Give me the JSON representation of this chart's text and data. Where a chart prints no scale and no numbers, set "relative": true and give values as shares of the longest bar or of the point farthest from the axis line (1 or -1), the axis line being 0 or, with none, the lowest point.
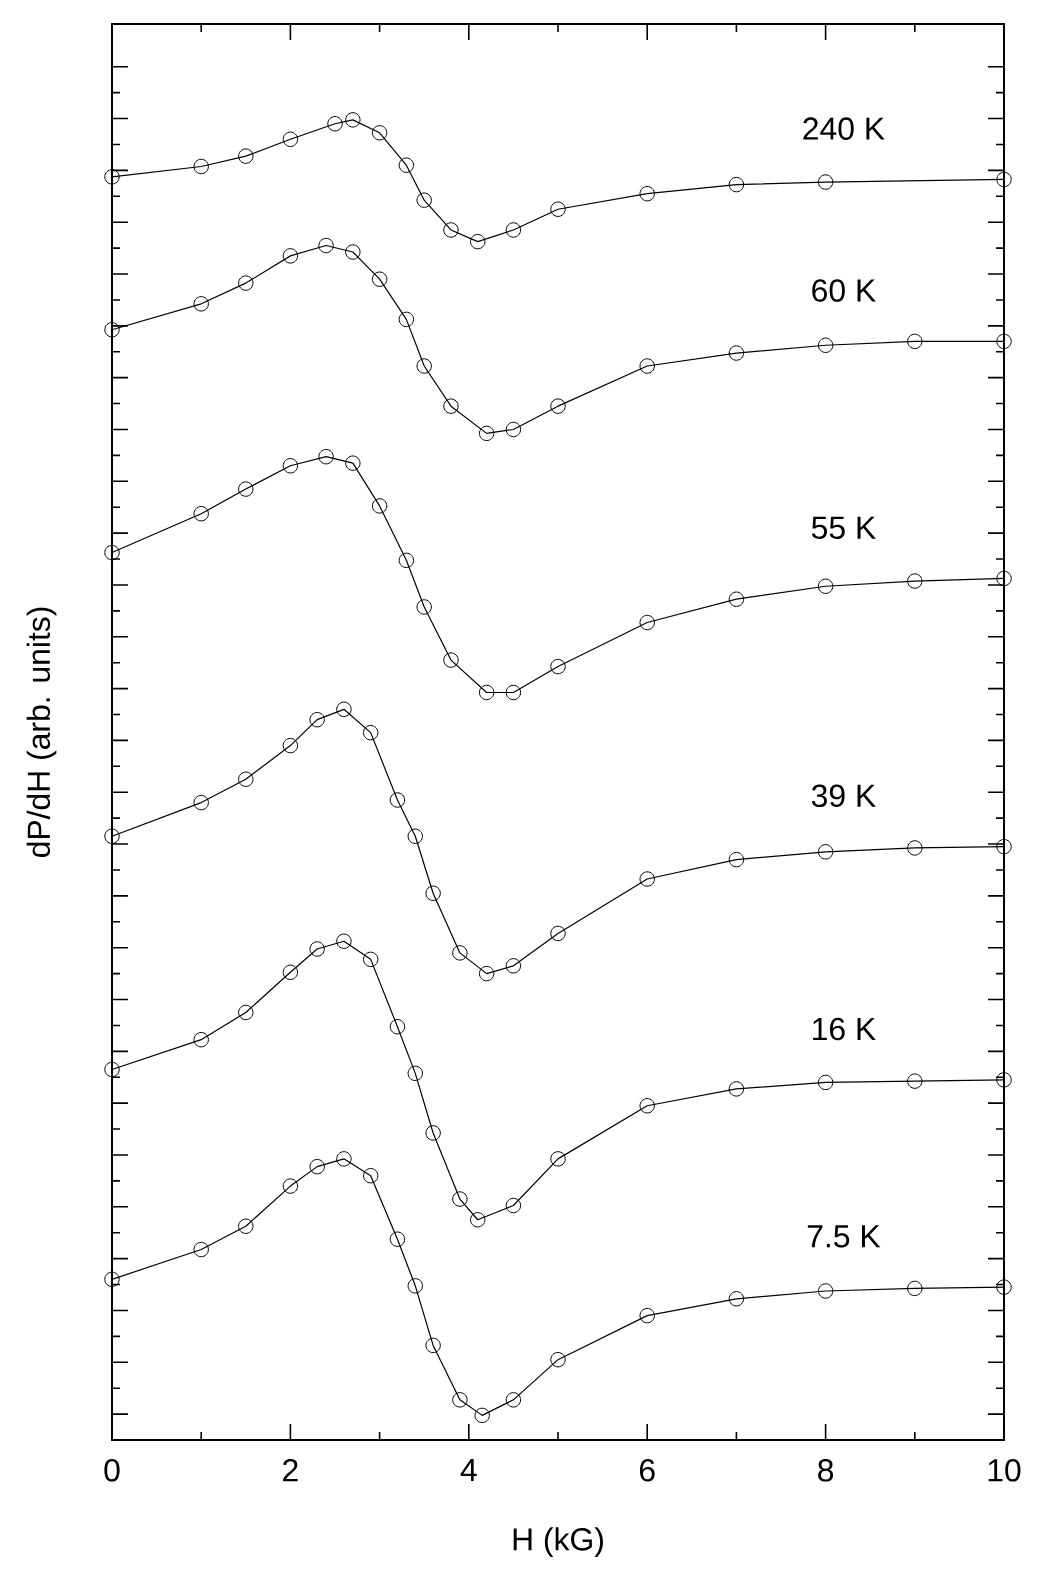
{
  "chart_data": {
    "type": "line",
    "relative": true,
    "xlabel": "H (kG)",
    "ylabel": "dP/dH (arb. units)",
    "xlim": [
      0,
      10
    ],
    "xticks": [
      0,
      2,
      4,
      6,
      8,
      10
    ],
    "tick_labels": "x",
    "legend": false,
    "marker": "circle",
    "line_style": "solid",
    "series": [
      {
        "name": "240 K",
        "color": "#000000",
        "x": [
          0,
          1,
          1.5,
          2,
          2.5,
          2.7,
          3.0,
          3.3,
          3.5,
          3.8,
          4.1,
          4.5,
          5,
          6,
          7,
          8,
          10
        ],
        "values": [
          0.956,
          0.964,
          0.972,
          0.985,
          0.997,
          1.0,
          0.99,
          0.965,
          0.938,
          0.915,
          0.906,
          0.915,
          0.931,
          0.943,
          0.95,
          0.952,
          0.954
        ]
      },
      {
        "name": "60 K",
        "color": "#000000",
        "x": [
          0,
          1,
          1.5,
          2,
          2.4,
          2.7,
          3.0,
          3.3,
          3.5,
          3.8,
          4.2,
          4.5,
          5,
          6,
          7,
          8,
          9,
          10
        ],
        "values": [
          0.838,
          0.858,
          0.874,
          0.895,
          0.903,
          0.898,
          0.877,
          0.846,
          0.81,
          0.779,
          0.758,
          0.761,
          0.779,
          0.81,
          0.82,
          0.826,
          0.829,
          0.829
        ]
      },
      {
        "name": "55 K",
        "color": "#000000",
        "x": [
          0,
          1,
          1.5,
          2,
          2.4,
          2.7,
          3.0,
          3.3,
          3.5,
          3.8,
          4.2,
          4.5,
          5,
          6,
          7,
          8,
          9,
          10
        ],
        "values": [
          0.666,
          0.696,
          0.715,
          0.733,
          0.74,
          0.735,
          0.702,
          0.66,
          0.624,
          0.583,
          0.558,
          0.558,
          0.578,
          0.612,
          0.63,
          0.64,
          0.644,
          0.646
        ]
      },
      {
        "name": "39 K",
        "color": "#000000",
        "x": [
          0,
          1,
          1.5,
          2,
          2.3,
          2.6,
          2.9,
          3.2,
          3.4,
          3.6,
          3.9,
          4.2,
          4.5,
          5,
          6,
          7,
          8,
          9,
          10
        ],
        "values": [
          0.447,
          0.473,
          0.491,
          0.517,
          0.537,
          0.545,
          0.527,
          0.475,
          0.447,
          0.403,
          0.357,
          0.341,
          0.347,
          0.372,
          0.414,
          0.429,
          0.435,
          0.438,
          0.439
        ]
      },
      {
        "name": "16 K",
        "color": "#000000",
        "x": [
          0,
          1,
          1.5,
          2,
          2.3,
          2.6,
          2.9,
          3.2,
          3.4,
          3.6,
          3.9,
          4.1,
          4.5,
          5,
          6,
          7,
          8,
          9,
          10
        ],
        "values": [
          0.267,
          0.29,
          0.311,
          0.342,
          0.36,
          0.366,
          0.352,
          0.3,
          0.264,
          0.218,
          0.167,
          0.151,
          0.162,
          0.198,
          0.239,
          0.252,
          0.257,
          0.258,
          0.259
        ]
      },
      {
        "name": "7.5 K",
        "color": "#000000",
        "x": [
          0,
          1,
          1.5,
          2,
          2.3,
          2.6,
          2.9,
          3.2,
          3.4,
          3.6,
          3.9,
          4.15,
          4.5,
          5,
          6,
          7,
          8,
          9,
          10
        ],
        "values": [
          0.105,
          0.128,
          0.146,
          0.177,
          0.192,
          0.198,
          0.185,
          0.136,
          0.1,
          0.054,
          0.012,
          0.0,
          0.012,
          0.043,
          0.077,
          0.09,
          0.096,
          0.098,
          0.099
        ]
      }
    ]
  }
}
